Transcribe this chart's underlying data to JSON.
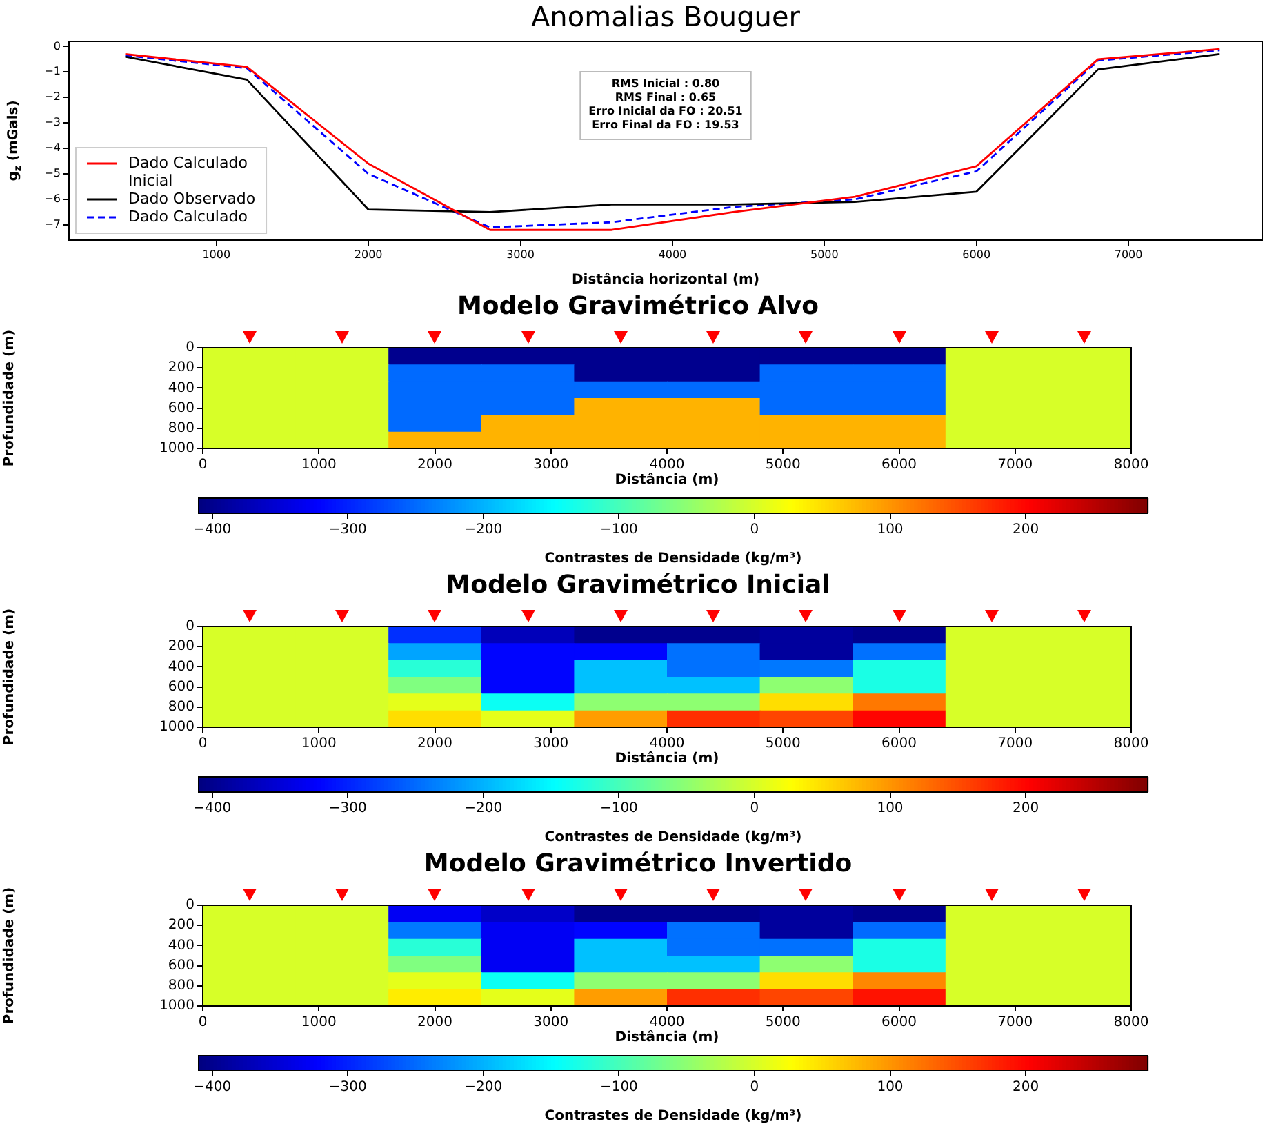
{
  "chart_data": [
    {
      "type": "line",
      "title": "Anomalias Bouguer",
      "xlabel": "Distância horizontal (m)",
      "ylabel": "g$_{z}$ (mGals)",
      "x": [
        400,
        1200,
        2000,
        2800,
        3600,
        4400,
        5200,
        6000,
        6800,
        7600
      ],
      "xlim": [
        30,
        7880
      ],
      "xticks": [
        1000,
        2000,
        3000,
        4000,
        5000,
        6000,
        7000
      ],
      "ylim": [
        -7.6,
        0.2
      ],
      "yticks": [
        0,
        -1,
        -2,
        -3,
        -4,
        -5,
        -6,
        -7
      ],
      "legend": "bottom left",
      "series": [
        {
          "name": "Dado Calculado Inicial",
          "color": "#ff0000",
          "values": [
            -0.3,
            -0.8,
            -4.6,
            -7.2,
            -7.2,
            -6.5,
            -5.9,
            -4.7,
            -0.5,
            -0.1
          ]
        },
        {
          "name": "Dado Observado",
          "color": "#000000",
          "values": [
            -0.4,
            -1.3,
            -6.4,
            -6.5,
            -6.2,
            -6.2,
            -6.1,
            -5.7,
            -0.9,
            -0.3
          ]
        },
        {
          "name": "Dado Calculado",
          "color": "#0000ff",
          "line_style": "dashed",
          "values": [
            -0.35,
            -0.85,
            -5.0,
            -7.1,
            -6.9,
            -6.3,
            -6.0,
            -4.9,
            -0.55,
            -0.15
          ]
        }
      ],
      "annotations": [
        "RMS Inicial : 0.80",
        "RMS Final : 0.65",
        "Erro Inicial da FO : 20.51",
        "Erro Final da FO : 19.53"
      ]
    },
    {
      "type": "heatmap",
      "title": "Modelo Gravimétrico Alvo",
      "xlabel": "Distância (m)",
      "ylabel": "Profundidade (m)",
      "clabel": "Contrastes de Densidade (kg/m³)",
      "cells": [
        [
          0,
          0,
          -400,
          -400,
          -400,
          -400,
          -400,
          -400,
          0,
          0
        ],
        [
          0,
          0,
          -250,
          -250,
          -400,
          -400,
          -250,
          -250,
          0,
          0
        ],
        [
          0,
          0,
          -250,
          -250,
          -250,
          -250,
          -250,
          -250,
          0,
          0
        ],
        [
          0,
          0,
          -250,
          -250,
          80,
          80,
          -250,
          -250,
          0,
          0
        ],
        [
          0,
          0,
          -250,
          80,
          80,
          80,
          80,
          80,
          0,
          0
        ],
        [
          0,
          0,
          80,
          80,
          80,
          80,
          80,
          80,
          0,
          0
        ]
      ],
      "clim": [
        -410,
        290
      ],
      "cticks": [
        -400,
        -300,
        -200,
        -100,
        0,
        100,
        200
      ],
      "xlim": [
        0,
        8000
      ],
      "xticks": [
        0,
        1000,
        2000,
        3000,
        4000,
        5000,
        6000,
        7000,
        8000
      ],
      "ylim": [
        1000,
        0
      ],
      "yticks": [
        0,
        200,
        400,
        600,
        800,
        1000
      ]
    },
    {
      "type": "heatmap",
      "title": "Modelo Gravimétrico Inicial",
      "xlabel": "Distância (m)",
      "ylabel": "Profundidade (m)",
      "clabel": "Contrastes de Densidade (kg/m³)",
      "cells": [
        [
          0,
          0,
          -290,
          -370,
          -400,
          -400,
          -390,
          -400,
          0,
          0
        ],
        [
          0,
          0,
          -210,
          -320,
          -320,
          -245,
          -390,
          -245,
          0,
          0
        ],
        [
          0,
          0,
          -120,
          -320,
          -190,
          -245,
          -240,
          -130,
          0,
          0
        ],
        [
          0,
          0,
          -60,
          -320,
          -190,
          -190,
          -50,
          -130,
          0,
          0
        ],
        [
          0,
          0,
          10,
          -140,
          -50,
          -50,
          50,
          120,
          0,
          0
        ],
        [
          0,
          0,
          50,
          10,
          95,
          170,
          155,
          200,
          0,
          0
        ]
      ],
      "clim": [
        -410,
        290
      ],
      "cticks": [
        -400,
        -300,
        -200,
        -100,
        0,
        100,
        200
      ],
      "xlim": [
        0,
        8000
      ],
      "xticks": [
        0,
        1000,
        2000,
        3000,
        4000,
        5000,
        6000,
        7000,
        8000
      ],
      "ylim": [
        1000,
        0
      ],
      "yticks": [
        0,
        200,
        400,
        600,
        800,
        1000
      ]
    },
    {
      "type": "heatmap",
      "title": "Modelo Gravimétrico Invertido",
      "xlabel": "Distância (m)",
      "ylabel": "Profundidade (m)",
      "clabel": "Contrastes de Densidade (kg/m³)",
      "cells": [
        [
          0,
          0,
          -330,
          -360,
          -400,
          -400,
          -390,
          -400,
          0,
          0
        ],
        [
          0,
          0,
          -240,
          -330,
          -320,
          -245,
          -390,
          -250,
          0,
          0
        ],
        [
          0,
          0,
          -120,
          -330,
          -190,
          -245,
          -245,
          -130,
          0,
          0
        ],
        [
          0,
          0,
          -60,
          -330,
          -190,
          -190,
          -50,
          -130,
          0,
          0
        ],
        [
          0,
          0,
          10,
          -140,
          -50,
          -50,
          50,
          110,
          0,
          0
        ],
        [
          0,
          0,
          40,
          10,
          95,
          170,
          155,
          190,
          0,
          0
        ]
      ],
      "clim": [
        -410,
        290
      ],
      "cticks": [
        -400,
        -300,
        -200,
        -100,
        0,
        100,
        200
      ],
      "xlim": [
        0,
        8000
      ],
      "xticks": [
        0,
        1000,
        2000,
        3000,
        4000,
        5000,
        6000,
        7000,
        8000
      ],
      "ylim": [
        1000,
        0
      ],
      "yticks": [
        0,
        200,
        400,
        600,
        800,
        1000
      ]
    }
  ]
}
